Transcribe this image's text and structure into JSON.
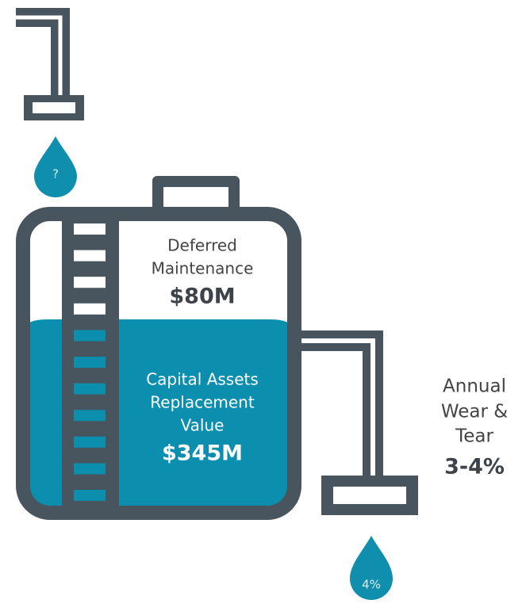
{
  "top_drop": "?",
  "tank": {
    "upper": {
      "lines": [
        "Deferred",
        "Maintenance"
      ],
      "value": "$80M"
    },
    "lower": {
      "lines": [
        "Capital Assets",
        "Replacement",
        "Value"
      ],
      "value": "$345M"
    }
  },
  "outflow": {
    "lines": [
      "Annual",
      "Wear &",
      "Tear"
    ],
    "value": "3-4%"
  },
  "bottom_drop": "4%"
}
